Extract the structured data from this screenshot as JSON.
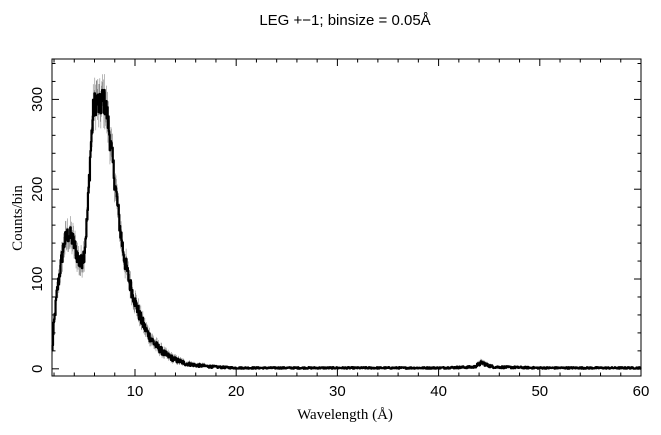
{
  "chart_data": {
    "type": "line",
    "title": "LEG +−1; binsize = 0.05Å",
    "xlabel": "Wavelength (Å)",
    "ylabel": "Counts/bin",
    "xlim": [
      1.8,
      60
    ],
    "ylim": [
      -8,
      345
    ],
    "x_ticks": [
      10,
      20,
      30,
      40,
      50,
      60
    ],
    "x_tick_labels": [
      "10",
      "20",
      "30",
      "40",
      "50",
      "60"
    ],
    "y_ticks": [
      0,
      100,
      200,
      300
    ],
    "y_tick_labels": [
      "0",
      "100",
      "200",
      "300"
    ],
    "grid": false,
    "legend": "none",
    "series": [
      {
        "x": [
          1.8,
          2.0,
          2.3,
          2.6,
          3.0,
          3.4,
          3.8,
          4.2,
          4.6,
          5.0,
          5.3,
          5.6,
          5.9,
          6.2,
          6.5,
          6.8,
          7.1,
          7.4,
          7.8,
          8.2,
          8.6,
          9.0,
          9.5,
          10.0,
          10.5,
          11.0,
          11.5,
          12.0,
          13.0,
          14.0,
          15.0,
          16.0,
          17.0,
          18.0,
          20.0,
          25.0,
          30.0,
          35.0,
          40.0,
          43.5,
          44.3,
          44.8,
          45.5,
          50.0,
          55.0,
          60.0
        ],
        "y": [
          15,
          50,
          85,
          110,
          140,
          150,
          145,
          130,
          115,
          130,
          170,
          240,
          290,
          300,
          290,
          300,
          295,
          270,
          230,
          190,
          150,
          120,
          95,
          75,
          58,
          45,
          35,
          27,
          16,
          10,
          6,
          4,
          3,
          2,
          1,
          1,
          1,
          1,
          1,
          2,
          7,
          4,
          2,
          1,
          1,
          1
        ],
        "color": "#000000",
        "error_color": "#888888"
      }
    ]
  }
}
